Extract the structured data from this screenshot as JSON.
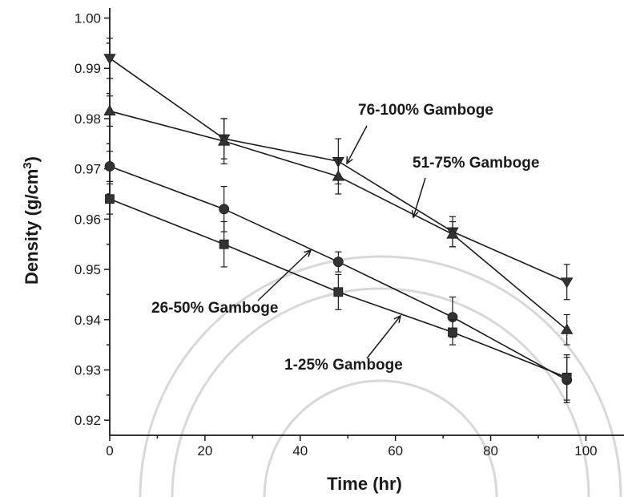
{
  "chart_data": {
    "type": "line",
    "xlabel": "Time (hr)",
    "ylabel": "Density (g/cm3)",
    "xlim": [
      0,
      108
    ],
    "ylim": [
      0.917,
      1.002
    ],
    "x_ticks": [
      0,
      20,
      40,
      60,
      80,
      100
    ],
    "y_ticks": [
      0.92,
      0.93,
      0.94,
      0.95,
      0.96,
      0.97,
      0.98,
      0.99,
      1.0
    ],
    "x_tick_labels": [
      "0",
      "20",
      "40",
      "60",
      "80",
      "100"
    ],
    "y_tick_labels": [
      "0.92",
      "0.93",
      "0.94",
      "0.95",
      "0.96",
      "0.97",
      "0.98",
      "0.99",
      "1.00"
    ],
    "grid": false,
    "series": [
      {
        "name": "76-100% Gamboge",
        "marker": "triangle-down",
        "x": [
          0,
          24,
          48,
          72,
          96
        ],
        "y": [
          0.992,
          0.976,
          0.9715,
          0.9575,
          0.9475
        ],
        "err": [
          0.004,
          0.004,
          0.0045,
          0.003,
          0.0035
        ]
      },
      {
        "name": "51-75% Gamboge",
        "marker": "triangle-up",
        "x": [
          0,
          24,
          48,
          72,
          96
        ],
        "y": [
          0.9815,
          0.9755,
          0.9685,
          0.957,
          0.938
        ],
        "err": [
          0.003,
          0.0045,
          0.0035,
          0.0025,
          0.003
        ]
      },
      {
        "name": "26-50% Gamboge",
        "marker": "circle",
        "x": [
          0,
          24,
          48,
          72,
          96
        ],
        "y": [
          0.9705,
          0.962,
          0.9515,
          0.9405,
          0.928
        ],
        "err": [
          0.003,
          0.0045,
          0.002,
          0.004,
          0.0045
        ]
      },
      {
        "name": "1-25% Gamboge",
        "marker": "square",
        "x": [
          0,
          24,
          48,
          72,
          96
        ],
        "y": [
          0.964,
          0.955,
          0.9455,
          0.9375,
          0.9285
        ],
        "err": [
          0.003,
          0.0045,
          0.0035,
          0.0025,
          0.0045
        ]
      }
    ],
    "annotations": [
      {
        "text": "76-100% Gamboge",
        "series": 0
      },
      {
        "text": "51-75% Gamboge",
        "series": 1
      },
      {
        "text": "26-50% Gamboge",
        "series": 2
      },
      {
        "text": "1-25% Gamboge",
        "series": 3
      }
    ]
  }
}
